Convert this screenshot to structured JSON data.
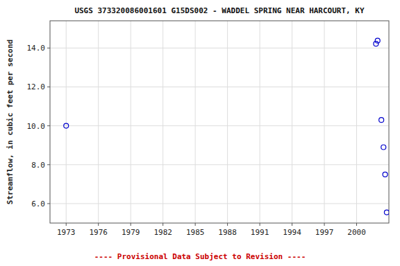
{
  "chart_data": {
    "type": "scatter",
    "title": "USGS 373320086001601 G15DS002 - WADDEL SPRING NEAR HARCOURT, KY",
    "ylabel": "Streamflow, in cubic feet per second",
    "x": [
      1973.0,
      2001.8,
      2001.95,
      2002.3,
      2002.5,
      2002.65,
      2002.8
    ],
    "y": [
      10.0,
      14.22,
      14.38,
      10.3,
      8.9,
      7.5,
      5.55
    ],
    "color": "#0000CC",
    "marker": "open-circle",
    "xlim": [
      1971.5,
      2003.0
    ],
    "ylim": [
      5.0,
      15.4
    ],
    "xticks": [
      1973,
      1976,
      1979,
      1982,
      1985,
      1988,
      1991,
      1994,
      1997,
      2000
    ],
    "yticks": [
      {
        "value": 6.0,
        "label": "6.0"
      },
      {
        "value": 8.0,
        "label": "8.0"
      },
      {
        "value": 10.0,
        "label": "10.0"
      },
      {
        "value": 12.0,
        "label": "12.0"
      },
      {
        "value": 14.0,
        "label": "14.0"
      }
    ],
    "grid": true,
    "annotation": {
      "text": "---- Provisional Data Subject to Revision ----",
      "color": "#cc0000"
    }
  }
}
